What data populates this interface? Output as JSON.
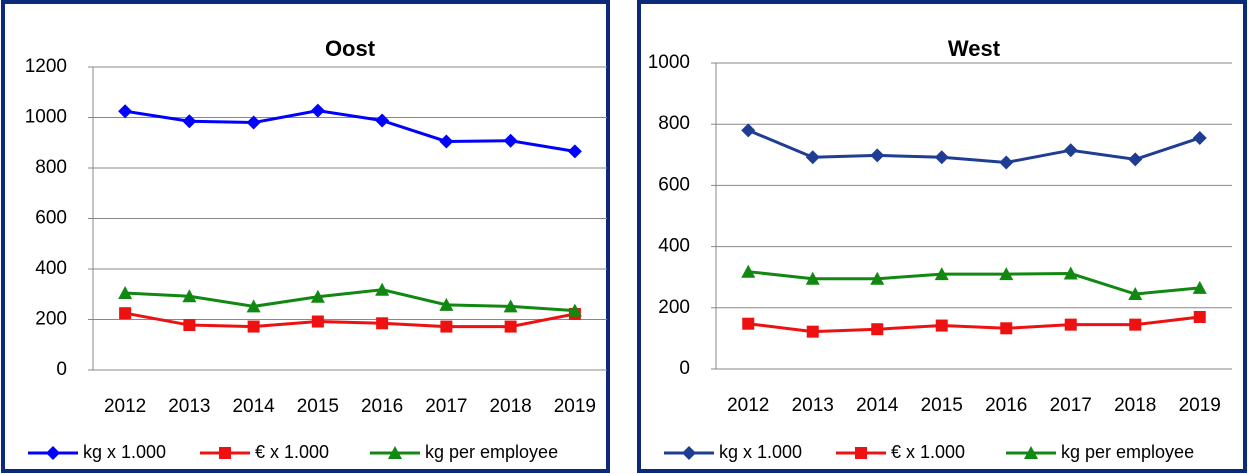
{
  "chart_data": [
    {
      "type": "line",
      "title": "Oost",
      "categories": [
        "2012",
        "2013",
        "2014",
        "2015",
        "2016",
        "2017",
        "2018",
        "2019"
      ],
      "series": [
        {
          "name": "kg x 1.000",
          "color": "#0000ff",
          "marker": "diamond",
          "values": [
            1025,
            985,
            980,
            1027,
            988,
            905,
            908,
            866
          ]
        },
        {
          "name": "€ x 1.000",
          "color": "#ee1111",
          "marker": "square",
          "values": [
            225,
            178,
            172,
            192,
            185,
            172,
            172,
            222
          ]
        },
        {
          "name": "kg per employee",
          "color": "#118811",
          "marker": "triangle",
          "values": [
            305,
            292,
            252,
            290,
            318,
            258,
            252,
            235
          ]
        }
      ],
      "ylim": [
        0,
        1200
      ],
      "yticks": [
        0,
        200,
        400,
        600,
        800,
        1000,
        1200
      ],
      "grid": true,
      "legend": "bottom"
    },
    {
      "type": "line",
      "title": "West",
      "categories": [
        "2012",
        "2013",
        "2014",
        "2015",
        "2016",
        "2017",
        "2018",
        "2019"
      ],
      "series": [
        {
          "name": "kg x 1.000",
          "color": "#1f3e93",
          "marker": "diamond",
          "values": [
            780,
            692,
            698,
            692,
            675,
            715,
            685,
            755
          ]
        },
        {
          "name": "€ x 1.000",
          "color": "#ee1111",
          "marker": "square",
          "values": [
            148,
            122,
            130,
            142,
            133,
            145,
            145,
            170
          ]
        },
        {
          "name": "kg per employee",
          "color": "#118811",
          "marker": "triangle",
          "values": [
            318,
            295,
            295,
            310,
            310,
            312,
            245,
            265
          ]
        }
      ],
      "ylim": [
        0,
        1000
      ],
      "yticks": [
        0,
        200,
        400,
        600,
        800,
        1000
      ],
      "grid": true,
      "legend": "bottom"
    }
  ]
}
